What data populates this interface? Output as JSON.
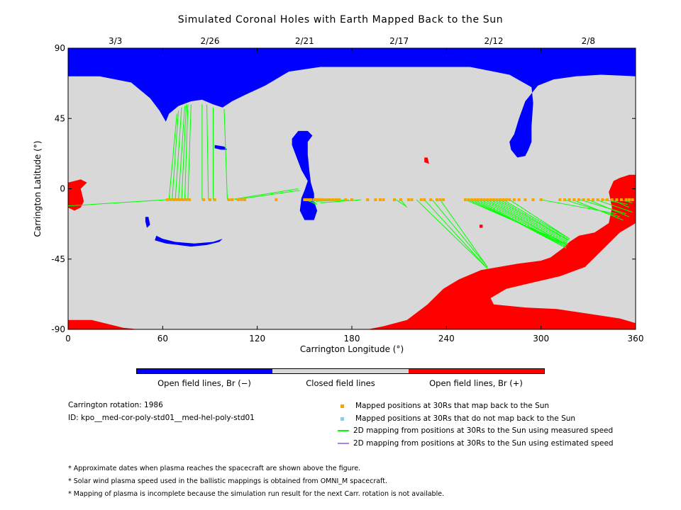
{
  "colors": {
    "open_negative": "#0000ff",
    "closed": "#d8d8d8",
    "open_positive": "#ff0000",
    "mapped_points": "#f5a400",
    "unmapped_points": "#87ceeb",
    "measured_speed_lines": "#00ff00",
    "estimated_speed_lines": "#b07fe0"
  },
  "chart_data": {
    "type": "map",
    "title": "Simulated Coronal Holes with Earth Mapped Back to the Sun",
    "xlabel": "Carrington Longitude (°)",
    "ylabel": "Carrington Latitude (°)",
    "xlim": [
      0,
      360
    ],
    "ylim": [
      -90,
      90
    ],
    "x_ticks": [
      0,
      60,
      120,
      180,
      240,
      300,
      360
    ],
    "y_ticks": [
      90,
      45,
      0,
      -45,
      -90
    ],
    "top_dates": [
      {
        "label": "3/3",
        "longitude": 30
      },
      {
        "label": "2/26",
        "longitude": 90
      },
      {
        "label": "2/21",
        "longitude": 150
      },
      {
        "label": "2/17",
        "longitude": 210
      },
      {
        "label": "2/12",
        "longitude": 270
      },
      {
        "label": "2/8",
        "longitude": 330
      }
    ],
    "spacecraft_latitude": -7,
    "mapped_positions_lon": [
      63,
      65,
      67,
      69,
      71,
      73,
      75,
      77,
      86,
      90,
      93,
      102,
      104,
      108,
      110,
      112,
      132,
      150,
      151,
      152,
      153,
      154,
      156,
      157,
      158,
      159,
      160,
      161,
      162,
      164,
      166,
      168,
      170,
      172,
      176,
      180,
      190,
      195,
      198,
      200,
      207,
      211,
      216,
      218,
      224,
      226,
      230,
      234,
      236,
      238,
      252,
      254,
      256,
      258,
      260,
      262,
      264,
      266,
      268,
      270,
      272,
      274,
      276,
      278,
      280,
      283,
      286,
      290,
      295,
      300,
      312,
      315,
      318,
      321,
      324,
      327,
      330,
      333,
      336,
      339,
      342,
      345,
      348,
      351,
      354,
      356,
      358
    ],
    "measured_lines": [
      [
        0,
        -11,
        62,
        -7
      ],
      [
        64,
        -7,
        69,
        48
      ],
      [
        66,
        -7,
        70,
        50
      ],
      [
        68,
        -7,
        72,
        52
      ],
      [
        70,
        -7,
        74,
        53
      ],
      [
        72,
        -7,
        75,
        54
      ],
      [
        74,
        -7,
        76,
        54
      ],
      [
        76,
        -7,
        78,
        54
      ],
      [
        85,
        -7,
        85,
        54
      ],
      [
        89,
        -7,
        88,
        54
      ],
      [
        92,
        -7,
        92,
        52
      ],
      [
        101,
        -7,
        99,
        51
      ],
      [
        103,
        -7,
        146,
        0
      ],
      [
        106,
        -7,
        147,
        -1
      ],
      [
        150,
        -7,
        156,
        -9
      ],
      [
        152,
        -7,
        157,
        -10
      ],
      [
        154,
        -7,
        158,
        -10
      ],
      [
        156,
        -7,
        158,
        -8
      ],
      [
        160,
        -7,
        158,
        -8
      ],
      [
        162,
        -7,
        157,
        -8
      ],
      [
        165,
        -7,
        157,
        -8
      ],
      [
        168,
        -7,
        156,
        -7
      ],
      [
        172,
        -7,
        157,
        -8
      ],
      [
        178,
        -7,
        158,
        -8
      ],
      [
        186,
        -7,
        160,
        -9
      ],
      [
        208,
        -7,
        214,
        -11
      ],
      [
        211,
        -7,
        215,
        -12
      ],
      [
        221,
        -7,
        266,
        -51
      ],
      [
        226,
        -7,
        266,
        -51
      ],
      [
        231,
        -7,
        266,
        -50
      ],
      [
        236,
        -7,
        266,
        -50
      ],
      [
        252,
        -7,
        316,
        -35
      ],
      [
        254,
        -7,
        316,
        -36
      ],
      [
        256,
        -7,
        316,
        -37
      ],
      [
        258,
        -7,
        316,
        -38
      ],
      [
        260,
        -7,
        316,
        -38
      ],
      [
        262,
        -7,
        316,
        -37
      ],
      [
        264,
        -7,
        316,
        -36
      ],
      [
        266,
        -7,
        317,
        -36
      ],
      [
        268,
        -7,
        317,
        -35
      ],
      [
        270,
        -7,
        317,
        -34
      ],
      [
        272,
        -7,
        317,
        -33
      ],
      [
        274,
        -7,
        318,
        -33
      ],
      [
        276,
        -7,
        318,
        -32
      ],
      [
        280,
        -7,
        318,
        -32
      ],
      [
        300,
        -7,
        348,
        -16
      ],
      [
        315,
        -7,
        350,
        -18
      ],
      [
        320,
        -7,
        352,
        -20
      ],
      [
        325,
        -7,
        354,
        -16
      ],
      [
        330,
        -7,
        356,
        -18
      ],
      [
        335,
        -7,
        358,
        -15
      ],
      [
        340,
        -7,
        355,
        -10
      ],
      [
        345,
        -7,
        356,
        -12
      ],
      [
        350,
        -7,
        358,
        -9
      ],
      [
        355,
        -7,
        357,
        -9
      ]
    ]
  },
  "top_dates": [
    "3/3",
    "2/26",
    "2/21",
    "2/17",
    "2/12",
    "2/8"
  ],
  "colorbar": {
    "open_negative_label": "Open field lines, Br (−)",
    "closed_label": "Closed field lines",
    "open_positive_label": "Open field lines, Br (+)"
  },
  "info": {
    "rotation": "Carrington rotation: 1986",
    "id": "ID: kpo__med-cor-poly-std01__med-hel-poly-std01"
  },
  "legend": {
    "mapped": "Mapped positions at 30Rs that map back to the Sun",
    "unmapped": "Mapped positions at 30Rs that do not map back to the Sun",
    "measured": "2D mapping from positions at 30Rs to the Sun using measured speed",
    "estimated": "2D mapping from positions at 30Rs to the Sun using estimated speed"
  },
  "notes": [
    "* Approximate dates when plasma reaches the spacecraft are shown above the figure.",
    "* Solar wind plasma speed used in the ballistic mappings is obtained from OMNI_M spacecraft.",
    "* Mapping of plasma is incomplete because the simulation run result for the next Carr. rotation is not available."
  ]
}
